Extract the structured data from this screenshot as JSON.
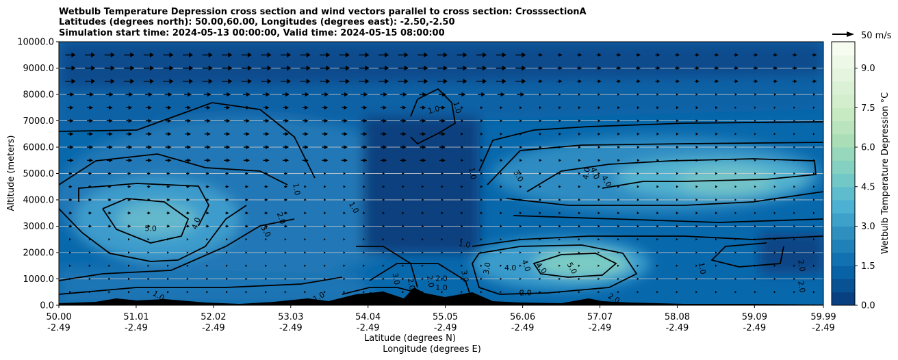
{
  "chart_data": {
    "type": "heatmap",
    "title_lines": [
      "Wetbulb Temperature Depression cross section and wind vectors parallel to cross section: CrosssectionA",
      "Latitudes (degrees north): 50.00,60.00, Longitudes (degrees east): -2.50,-2.50",
      "Simulation start time: 2024-05-13 00:00:00, Valid time: 2024-05-15 08:00:00"
    ],
    "xlabel_line1": "Latitude (degrees N)",
    "xlabel_line2": "Longitude (degrees E)",
    "ylabel": "Altitude (meters)",
    "ylim": [
      0,
      10000
    ],
    "xlim": [
      50.0,
      59.99
    ],
    "x_ticks": [
      {
        "lat": "50.00",
        "lon": "-2.49",
        "value": 50.0
      },
      {
        "lat": "51.01",
        "lon": "-2.49",
        "value": 51.01
      },
      {
        "lat": "52.02",
        "lon": "-2.49",
        "value": 52.02
      },
      {
        "lat": "53.03",
        "lon": "-2.49",
        "value": 53.03
      },
      {
        "lat": "54.04",
        "lon": "-2.49",
        "value": 54.04
      },
      {
        "lat": "55.05",
        "lon": "-2.49",
        "value": 55.05
      },
      {
        "lat": "56.06",
        "lon": "-2.49",
        "value": 56.06
      },
      {
        "lat": "57.07",
        "lon": "-2.49",
        "value": 57.07
      },
      {
        "lat": "58.08",
        "lon": "-2.49",
        "value": 58.08
      },
      {
        "lat": "59.09",
        "lon": "-2.49",
        "value": 59.09
      },
      {
        "lat": "59.99",
        "lon": "-2.49",
        "value": 59.99
      }
    ],
    "y_ticks": [
      {
        "label": "0.0",
        "value": 0
      },
      {
        "label": "1000.0",
        "value": 1000
      },
      {
        "label": "2000.0",
        "value": 2000
      },
      {
        "label": "3000.0",
        "value": 3000
      },
      {
        "label": "4000.0",
        "value": 4000
      },
      {
        "label": "5000.0",
        "value": 5000
      },
      {
        "label": "6000.0",
        "value": 6000
      },
      {
        "label": "7000.0",
        "value": 7000
      },
      {
        "label": "8000.0",
        "value": 8000
      },
      {
        "label": "9000.0",
        "value": 9000
      },
      {
        "label": "10000.0",
        "value": 10000
      }
    ],
    "colorbar": {
      "label": "Wetbulb Temperature Depression °C",
      "range": [
        0,
        10
      ],
      "levels": [
        0.0,
        0.5,
        1.0,
        1.5,
        2.0,
        2.5,
        3.0,
        3.5,
        4.0,
        4.5,
        5.0,
        5.5,
        6.0,
        6.5,
        7.0,
        7.5,
        8.0,
        8.5,
        9.0,
        9.5,
        10.0
      ],
      "ticks": [
        {
          "label": "0.0",
          "value": 0.0
        },
        {
          "label": "1.5",
          "value": 1.5
        },
        {
          "label": "3.0",
          "value": 3.0
        },
        {
          "label": "4.5",
          "value": 4.5
        },
        {
          "label": "6.0",
          "value": 6.0
        },
        {
          "label": "7.5",
          "value": 7.5
        },
        {
          "label": "9.0",
          "value": 9.0
        }
      ],
      "colors": [
        "#084081",
        "#0868ac",
        "#2b8cbe",
        "#4eb3d3",
        "#7bccc4",
        "#a8ddb5",
        "#ccebc5",
        "#e0f3db",
        "#f7fcf0"
      ]
    },
    "quiver_key": {
      "label": "50 m/s",
      "value": 50
    },
    "grid": "horizontal",
    "contour_labels": [
      {
        "text": "5.0",
        "x": 51.2,
        "y": 2900,
        "rot": 0
      },
      {
        "text": "4.0",
        "x": 51.8,
        "y": 3100,
        "rot": -70
      },
      {
        "text": "3.0",
        "x": 52.7,
        "y": 2800,
        "rot": 60
      },
      {
        "text": "2.0",
        "x": 52.9,
        "y": 3300,
        "rot": 70
      },
      {
        "text": "1.0",
        "x": 53.1,
        "y": 4400,
        "rot": 80
      },
      {
        "text": "1.0",
        "x": 53.85,
        "y": 3700,
        "rot": 60
      },
      {
        "text": "1.0",
        "x": 54.9,
        "y": 7400,
        "rot": -15
      },
      {
        "text": "1.0",
        "x": 55.2,
        "y": 7500,
        "rot": 75
      },
      {
        "text": "1.0",
        "x": 55.4,
        "y": 5000,
        "rot": 80
      },
      {
        "text": "1.0",
        "x": 55.3,
        "y": 2300,
        "rot": 10
      },
      {
        "text": "3.0",
        "x": 56.0,
        "y": 4900,
        "rot": 60
      },
      {
        "text": "4.0",
        "x": 56.9,
        "y": 5000,
        "rot": -80
      },
      {
        "text": "4.0",
        "x": 57.0,
        "y": 5000,
        "rot": 70
      },
      {
        "text": "4.0",
        "x": 57.15,
        "y": 4700,
        "rot": 60
      },
      {
        "text": "3.0",
        "x": 55.3,
        "y": 1100,
        "rot": 80
      },
      {
        "text": "3.0",
        "x": 55.6,
        "y": 1400,
        "rot": -80
      },
      {
        "text": "4.0",
        "x": 55.9,
        "y": 1400,
        "rot": 0
      },
      {
        "text": "4.0",
        "x": 56.1,
        "y": 1500,
        "rot": 70
      },
      {
        "text": "4.0",
        "x": 56.3,
        "y": 1400,
        "rot": 50
      },
      {
        "text": "5.0",
        "x": 56.7,
        "y": 1400,
        "rot": 60
      },
      {
        "text": "3.0",
        "x": 54.4,
        "y": 1000,
        "rot": 80
      },
      {
        "text": "2.0",
        "x": 54.6,
        "y": 800,
        "rot": 80
      },
      {
        "text": "2.0",
        "x": 54.85,
        "y": 900,
        "rot": 80
      },
      {
        "text": "2.0",
        "x": 55.0,
        "y": 1000,
        "rot": 0
      },
      {
        "text": "1.0",
        "x": 55.0,
        "y": 650,
        "rot": 0
      },
      {
        "text": "2.0",
        "x": 56.1,
        "y": 450,
        "rot": 0
      },
      {
        "text": "1.0",
        "x": 58.4,
        "y": 1400,
        "rot": 80
      },
      {
        "text": "2.0",
        "x": 59.7,
        "y": 1500,
        "rot": 80
      },
      {
        "text": "2.0",
        "x": 59.7,
        "y": 700,
        "rot": 80
      },
      {
        "text": "1.0",
        "x": 51.3,
        "y": 350,
        "rot": 30
      },
      {
        "text": "1.0",
        "x": 53.4,
        "y": 300,
        "rot": -30
      },
      {
        "text": "1.0",
        "x": 54.1,
        "y": 300,
        "rot": 30
      },
      {
        "text": "2.0",
        "x": 57.25,
        "y": 250,
        "rot": 30
      }
    ]
  }
}
